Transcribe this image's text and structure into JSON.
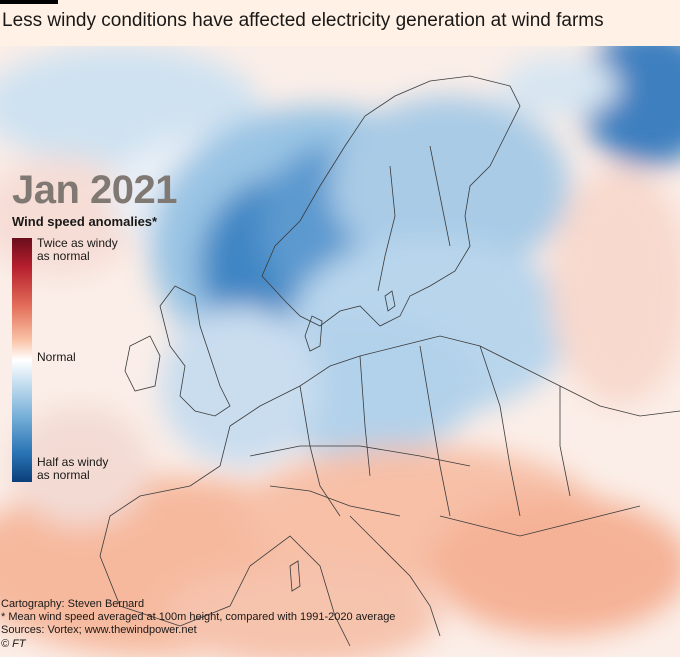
{
  "headline": "Less windy conditions have affected electricity generation at wind farms",
  "period": "Jan 2021",
  "legend": {
    "title": "Wind speed anomalies*",
    "top_line1": "Twice as windy",
    "top_line2": "as normal",
    "mid": "Normal",
    "bottom_line1": "Half as windy",
    "bottom_line2": "as normal",
    "scale_colors": [
      "#6a0e1b",
      "#e36f5a",
      "#ffffff",
      "#72acd6",
      "#0b3f7a"
    ]
  },
  "footer": {
    "cartography": "Cartography: Steven Bernard",
    "note": "* Mean wind speed averaged at 100m height, compared with 1991-2020 average",
    "sources": "Sources: Vortex; www.thewindpower.net",
    "copyright": "© FT"
  }
}
